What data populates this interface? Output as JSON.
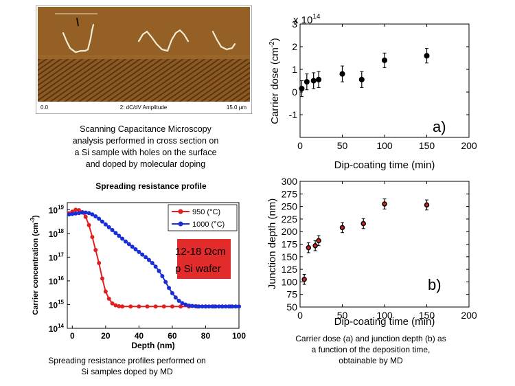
{
  "scm_image": {
    "scale_start": "0.0",
    "channel": "2: dC/dV Amplitude",
    "scale_end": "15.0 µm",
    "caption": "Scanning Capacitance Microscopy\nanalysis performed in cross section on\na Si sample with holes on the surface\nand doped by molecular doping",
    "colors": {
      "background": "#8b5a22",
      "stripe": "#5a3410",
      "highlight": "#f0ead0"
    }
  },
  "srp_caption": "Spreading resistance profiles performed on\nSi samples doped by MD",
  "right_caption": "Carrier dose (a) and junction depth (b) as\na function of the deposition time,\nobtainable by MD",
  "chart_data": [
    {
      "id": "carrier-dose",
      "type": "scatter",
      "title": "",
      "xlabel": "Dip-coating time (min)",
      "ylabel": "Carrier dose (cm",
      "ylabel_sup": "-2",
      "ylabel_end": ")",
      "multiplier": "x 10",
      "multiplier_exp": "14",
      "panel_label": "a)",
      "xlim": [
        0,
        200
      ],
      "ylim": [
        -2,
        3
      ],
      "xticks": [
        "0",
        "50",
        "100",
        "150",
        "200"
      ],
      "yticks": [
        "-1",
        "0",
        "1",
        "2",
        "3"
      ],
      "points": [
        {
          "x": 2,
          "y": 0.15,
          "err": 0.35
        },
        {
          "x": 8,
          "y": 0.45,
          "err": 0.35
        },
        {
          "x": 16,
          "y": 0.5,
          "err": 0.35
        },
        {
          "x": 22,
          "y": 0.55,
          "err": 0.35
        },
        {
          "x": 50,
          "y": 0.8,
          "err": 0.35
        },
        {
          "x": 73,
          "y": 0.55,
          "err": 0.35
        },
        {
          "x": 100,
          "y": 1.4,
          "err": 0.32
        },
        {
          "x": 150,
          "y": 1.6,
          "err": 0.32
        }
      ],
      "colors": {
        "marker": "#000000"
      }
    },
    {
      "id": "junction-depth",
      "type": "scatter",
      "title": "",
      "xlabel": "Dip-coating time (min)",
      "ylabel": "Junction depth (nm)",
      "panel_label": "b)",
      "xlim": [
        0,
        200
      ],
      "ylim": [
        50,
        300
      ],
      "xticks": [
        "0",
        "50",
        "100",
        "150",
        "200"
      ],
      "yticks": [
        "50",
        "75",
        "100",
        "125",
        "150",
        "175",
        "200",
        "225",
        "250",
        "275",
        "300"
      ],
      "points": [
        {
          "x": 5,
          "y": 105,
          "err": 10
        },
        {
          "x": 10,
          "y": 168,
          "err": 10
        },
        {
          "x": 18,
          "y": 172,
          "err": 10
        },
        {
          "x": 22,
          "y": 182,
          "err": 10
        },
        {
          "x": 50,
          "y": 208,
          "err": 10
        },
        {
          "x": 75,
          "y": 216,
          "err": 10
        },
        {
          "x": 100,
          "y": 255,
          "err": 10
        },
        {
          "x": 150,
          "y": 253,
          "err": 10
        }
      ],
      "colors": {
        "marker": "#000000",
        "marker_fill": "#cc2222"
      }
    },
    {
      "id": "spreading-resistance",
      "type": "line",
      "title": "Spreading resistance profile",
      "xlabel": "Depth (nm)",
      "ylabel": "Carrier concentration (cm",
      "ylabel_sup": "-3",
      "ylabel_end": ")",
      "y_scale": "log",
      "xlim": [
        -3,
        100
      ],
      "ylim": [
        14,
        19.3
      ],
      "xticks": [
        "0",
        "20",
        "40",
        "60",
        "80",
        "100"
      ],
      "yticks": [
        "14",
        "15",
        "16",
        "17",
        "18",
        "19"
      ],
      "ytick_base": "10",
      "legend_position": "top-right",
      "annotation": {
        "line1": "12-18 Ωcm",
        "line2": "p Si wafer",
        "color": "#e02020"
      },
      "series": [
        {
          "name": "950 (°C)",
          "color": "#e02020",
          "x": [
            -2,
            0,
            2,
            4,
            6,
            8,
            10,
            12,
            14,
            16,
            18,
            20,
            22,
            24,
            26,
            28,
            30,
            35,
            40,
            45,
            50,
            55,
            60,
            65,
            70,
            75,
            80,
            85,
            90,
            95,
            100
          ],
          "y": [
            18.85,
            18.92,
            19.0,
            18.98,
            18.9,
            18.7,
            18.35,
            17.85,
            17.3,
            16.75,
            16.1,
            15.55,
            15.25,
            15.05,
            14.97,
            14.93,
            14.92,
            14.92,
            14.92,
            14.92,
            14.92,
            14.92,
            14.92,
            14.92,
            14.92,
            14.92,
            14.92,
            14.92,
            14.92,
            14.92,
            14.92
          ]
        },
        {
          "name": "1000 (°C)",
          "color": "#1a2ed8",
          "x": [
            -2,
            0,
            2,
            4,
            6,
            8,
            10,
            12,
            14,
            16,
            18,
            20,
            22,
            24,
            26,
            28,
            30,
            32,
            34,
            36,
            38,
            40,
            42,
            44,
            46,
            48,
            50,
            52,
            54,
            56,
            58,
            60,
            62,
            64,
            66,
            68,
            70,
            72,
            74,
            76,
            78,
            80,
            82,
            84,
            86,
            88,
            90,
            92,
            94,
            96,
            98,
            100
          ],
          "y": [
            18.8,
            18.82,
            18.84,
            18.86,
            18.88,
            18.88,
            18.86,
            18.8,
            18.72,
            18.62,
            18.5,
            18.38,
            18.26,
            18.14,
            18.02,
            17.9,
            17.78,
            17.66,
            17.55,
            17.44,
            17.33,
            17.22,
            17.11,
            17.0,
            16.88,
            16.75,
            16.6,
            16.42,
            16.2,
            15.95,
            15.7,
            15.48,
            15.3,
            15.16,
            15.06,
            15.0,
            14.96,
            14.94,
            14.93,
            14.92,
            14.92,
            14.92,
            14.92,
            14.92,
            14.92,
            14.92,
            14.92,
            14.92,
            14.92,
            14.92,
            14.92,
            14.92
          ]
        }
      ]
    }
  ]
}
